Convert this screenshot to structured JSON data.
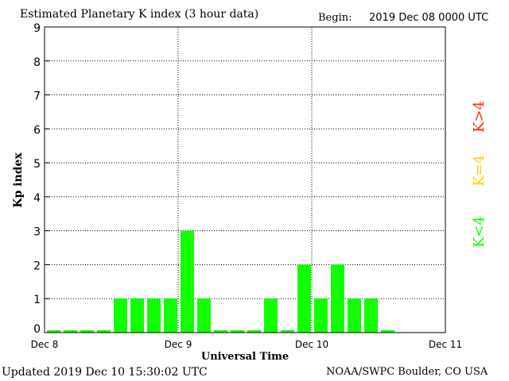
{
  "header": {
    "title": "Estimated Planetary K index (3 hour data)",
    "begin_label": "Begin:",
    "begin_value": "2019 Dec 08 0000 UTC"
  },
  "footer": {
    "updated": "Updated 2019 Dec 10 15:30:02 UTC",
    "credit": "NOAA/SWPC Boulder, CO USA"
  },
  "legend": [
    {
      "text": "K>4",
      "color": "#ff2a00"
    },
    {
      "text": "K=4",
      "color": "#ffd000"
    },
    {
      "text": "K<4",
      "color": "#11ff00"
    }
  ],
  "chart_data": {
    "type": "bar",
    "xlabel": "Universal Time",
    "ylabel": "Kp index",
    "ylim": [
      0,
      9
    ],
    "y_ticks": [
      "0",
      "1",
      "2",
      "3",
      "4",
      "5",
      "6",
      "7",
      "8",
      "9"
    ],
    "x_ticks": [
      "Dec 8",
      "Dec 9",
      "Dec 10",
      "Dec 11"
    ],
    "grid": "dotted",
    "bar_color": "#11ff00",
    "values": [
      0,
      0,
      0,
      0,
      1,
      1,
      1,
      1,
      3,
      1,
      0,
      0,
      0,
      1,
      0,
      2,
      1,
      2,
      1,
      1,
      0
    ]
  }
}
